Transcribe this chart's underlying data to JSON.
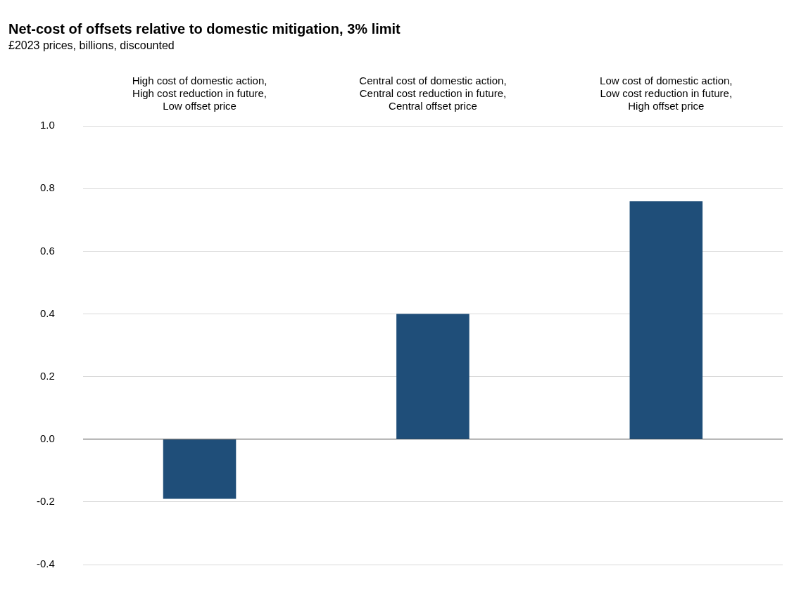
{
  "chart_data": {
    "type": "bar",
    "title": "Net-cost of offsets relative to domestic mitigation, 3% limit",
    "subtitle": "£2023 prices, billions, discounted",
    "categories": [
      "High cost of domestic action, High cost reduction in future, Low offset price",
      "Central cost of domestic action, Central cost reduction in future, Central offset price",
      "Low cost of domestic action, Low cost reduction in future, High offset price"
    ],
    "values": [
      -0.19,
      0.4,
      0.76
    ],
    "color": "#1f4e79",
    "ylim": [
      -0.4,
      1.0
    ],
    "yticks": [
      {
        "value": -0.4,
        "label": "-0.4"
      },
      {
        "value": -0.2,
        "label": "-0.2"
      },
      {
        "value": 0,
        "label": "0.0"
      },
      {
        "value": 0.2,
        "label": "0.2"
      },
      {
        "value": 0.4,
        "label": "0.4"
      },
      {
        "value": 0.6,
        "label": "0.6"
      },
      {
        "value": 0.8,
        "label": "0.8"
      },
      {
        "value": 1,
        "label": "1.0"
      }
    ],
    "grid": "y",
    "legend": false
  }
}
